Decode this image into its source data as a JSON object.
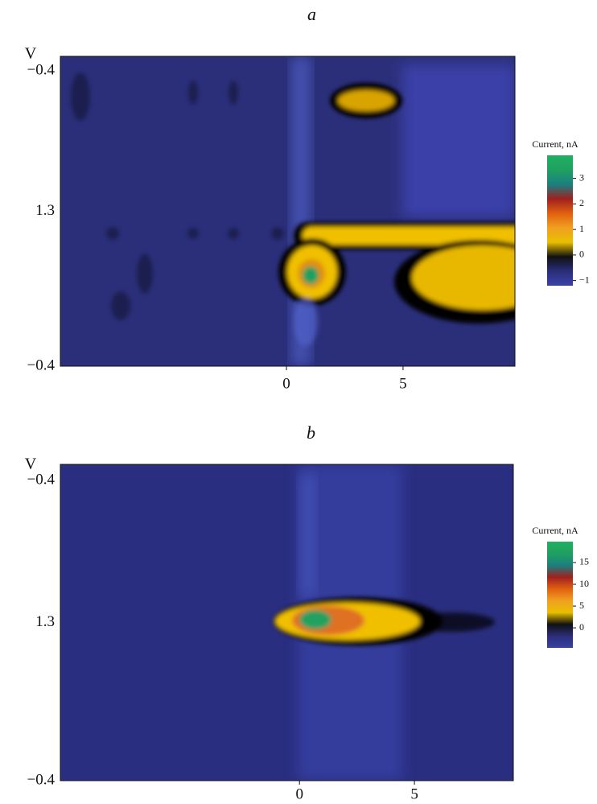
{
  "chart_data": [
    {
      "type": "heatmap",
      "title": "a",
      "y_label": "V",
      "ytick_labels": [
        "−0.4",
        "1.3",
        "−0.4"
      ],
      "xlim": [
        -9.7,
        9.8
      ],
      "xticks": [
        0,
        5
      ],
      "colorbar": {
        "label": "Current, nA",
        "clim": [
          -1.2,
          3.9
        ],
        "ticks": [
          3,
          2,
          1,
          0,
          {
            "value": -1,
            "label": "−1"
          }
        ],
        "colors": [
          "#3b40a8",
          "#2a2e78",
          "#111111",
          "#e8c000",
          "#f0a020",
          "#e06010",
          "#a02020",
          "#1a8080",
          "#20a060",
          "#20b060"
        ]
      }
    },
    {
      "type": "heatmap",
      "title": "b",
      "y_label": "V",
      "ytick_labels": [
        "−0.4",
        "1.3",
        "−0.4"
      ],
      "xlim": [
        -10.4,
        9.3
      ],
      "xticks": [
        0,
        5
      ],
      "colorbar": {
        "label": "Current, nA",
        "clim": [
          -4.6,
          19.8
        ],
        "ticks": [
          15,
          10,
          5,
          0
        ],
        "colors": [
          "#3b40a8",
          "#2a2e78",
          "#111111",
          "#e8c000",
          "#f0a020",
          "#e06010",
          "#a02020",
          "#1a8080",
          "#20a060",
          "#20b060"
        ]
      }
    }
  ]
}
